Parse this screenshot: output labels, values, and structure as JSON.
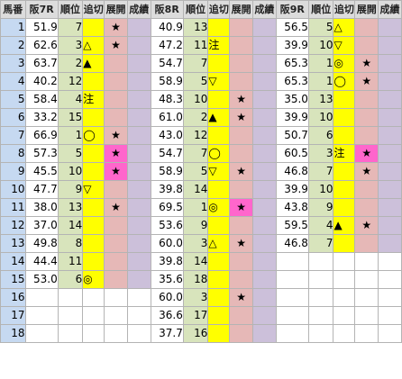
{
  "headers": {
    "umaban": "馬番",
    "races": [
      "阪7R",
      "阪8R",
      "阪9R"
    ],
    "rank": "順位",
    "oikiri": "追切",
    "tenkai": "展開",
    "seiseki": "成績"
  },
  "umaban": [
    "1",
    "2",
    "3",
    "4",
    "5",
    "6",
    "7",
    "8",
    "9",
    "10",
    "11",
    "12",
    "13",
    "14",
    "15",
    "16",
    "17",
    "18"
  ],
  "races": [
    {
      "rows": [
        {
          "v": "51.9",
          "r": "7",
          "o": "",
          "t": "★",
          "hot": false
        },
        {
          "v": "62.6",
          "r": "3",
          "o": "△",
          "t": "★",
          "hot": false
        },
        {
          "v": "63.7",
          "r": "2",
          "o": "▲",
          "t": "",
          "hot": false
        },
        {
          "v": "40.2",
          "r": "12",
          "o": "",
          "t": "",
          "hot": false
        },
        {
          "v": "58.4",
          "r": "4",
          "o": "注",
          "t": "",
          "hot": false
        },
        {
          "v": "33.2",
          "r": "15",
          "o": "",
          "t": "",
          "hot": false
        },
        {
          "v": "66.9",
          "r": "1",
          "o": "◯",
          "t": "★",
          "hot": false
        },
        {
          "v": "57.3",
          "r": "5",
          "o": "",
          "t": "★",
          "hot": true
        },
        {
          "v": "45.5",
          "r": "10",
          "o": "",
          "t": "★",
          "hot": true
        },
        {
          "v": "47.7",
          "r": "9",
          "o": "▽",
          "t": "",
          "hot": false
        },
        {
          "v": "38.0",
          "r": "13",
          "o": "",
          "t": "★",
          "hot": false
        },
        {
          "v": "37.0",
          "r": "14",
          "o": "",
          "t": "",
          "hot": false
        },
        {
          "v": "49.8",
          "r": "8",
          "o": "",
          "t": "",
          "hot": false
        },
        {
          "v": "44.4",
          "r": "11",
          "o": "",
          "t": "",
          "hot": false
        },
        {
          "v": "53.0",
          "r": "6",
          "o": "◎",
          "t": "",
          "hot": false
        }
      ]
    },
    {
      "rows": [
        {
          "v": "40.9",
          "r": "13",
          "o": "",
          "t": "",
          "hot": false
        },
        {
          "v": "47.2",
          "r": "11",
          "o": "注",
          "t": "",
          "hot": false
        },
        {
          "v": "54.7",
          "r": "7",
          "o": "",
          "t": "",
          "hot": false
        },
        {
          "v": "58.9",
          "r": "5",
          "o": "▽",
          "t": "",
          "hot": false
        },
        {
          "v": "48.3",
          "r": "10",
          "o": "",
          "t": "★",
          "hot": false
        },
        {
          "v": "61.0",
          "r": "2",
          "o": "▲",
          "t": "★",
          "hot": false
        },
        {
          "v": "43.0",
          "r": "12",
          "o": "",
          "t": "",
          "hot": false
        },
        {
          "v": "54.7",
          "r": "7",
          "o": "◯",
          "t": "",
          "hot": false
        },
        {
          "v": "58.9",
          "r": "5",
          "o": "▽",
          "t": "★",
          "hot": false
        },
        {
          "v": "39.8",
          "r": "14",
          "o": "",
          "t": "",
          "hot": false
        },
        {
          "v": "69.5",
          "r": "1",
          "o": "◎",
          "t": "★",
          "hot": true
        },
        {
          "v": "53.6",
          "r": "9",
          "o": "",
          "t": "",
          "hot": false
        },
        {
          "v": "60.0",
          "r": "3",
          "o": "△",
          "t": "★",
          "hot": false
        },
        {
          "v": "39.8",
          "r": "14",
          "o": "",
          "t": "",
          "hot": false
        },
        {
          "v": "35.6",
          "r": "18",
          "o": "",
          "t": "",
          "hot": false
        },
        {
          "v": "60.0",
          "r": "3",
          "o": "",
          "t": "★",
          "hot": false
        },
        {
          "v": "36.6",
          "r": "17",
          "o": "",
          "t": "",
          "hot": false
        },
        {
          "v": "37.7",
          "r": "16",
          "o": "",
          "t": "",
          "hot": false
        }
      ]
    },
    {
      "rows": [
        {
          "v": "56.5",
          "r": "5",
          "o": "△",
          "t": "",
          "hot": false
        },
        {
          "v": "39.9",
          "r": "10",
          "o": "▽",
          "t": "",
          "hot": false
        },
        {
          "v": "65.3",
          "r": "1",
          "o": "◎",
          "t": "★",
          "hot": false
        },
        {
          "v": "65.3",
          "r": "1",
          "o": "◯",
          "t": "★",
          "hot": false
        },
        {
          "v": "35.0",
          "r": "13",
          "o": "",
          "t": "",
          "hot": false
        },
        {
          "v": "39.9",
          "r": "10",
          "o": "",
          "t": "",
          "hot": false
        },
        {
          "v": "50.7",
          "r": "6",
          "o": "",
          "t": "",
          "hot": false
        },
        {
          "v": "60.5",
          "r": "3",
          "o": "注",
          "t": "★",
          "hot": true
        },
        {
          "v": "46.8",
          "r": "7",
          "o": "",
          "t": "★",
          "hot": false
        },
        {
          "v": "39.9",
          "r": "10",
          "o": "",
          "t": "",
          "hot": false
        },
        {
          "v": "43.8",
          "r": "9",
          "o": "",
          "t": "",
          "hot": false
        },
        {
          "v": "59.5",
          "r": "4",
          "o": "▲",
          "t": "★",
          "hot": false
        },
        {
          "v": "46.8",
          "r": "7",
          "o": "",
          "t": "",
          "hot": false
        }
      ]
    }
  ]
}
